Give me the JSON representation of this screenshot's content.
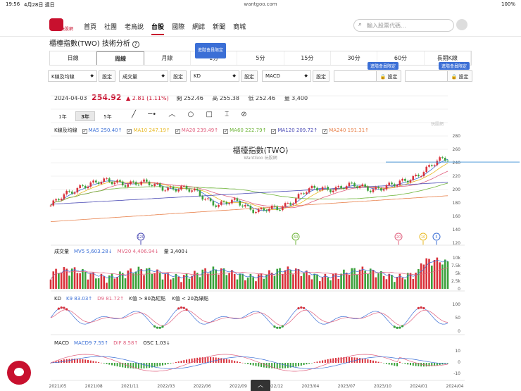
{
  "status": {
    "time": "19:56",
    "date": "4月28日 週日",
    "url": "wantgoo.com",
    "battery": "100%"
  },
  "nav": {
    "logo_text": "玩股網",
    "items": [
      "首頁",
      "社團",
      "老烏說",
      "台股",
      "國際",
      "網誌",
      "新聞",
      "商城"
    ],
    "active": "台股",
    "search_placeholder": "輸入股票代碼..."
  },
  "page": {
    "title": "櫃檯指數(TWO) 技術分析",
    "help": "?"
  },
  "tabs": [
    {
      "label": "日線"
    },
    {
      "label": "周線",
      "active": true
    },
    {
      "label": "月線"
    },
    {
      "label": "1分",
      "tag": "進階會員限定"
    },
    {
      "label": "5分"
    },
    {
      "label": "15分"
    },
    {
      "label": "30分"
    },
    {
      "label": "60分"
    },
    {
      "label": "長期K線"
    }
  ],
  "controls": [
    {
      "select": "K線及均線",
      "button": "設定"
    },
    {
      "select": "成交量",
      "button": "設定"
    },
    {
      "select": "KD",
      "button": "設定"
    },
    {
      "select": "MACD",
      "button": "設定"
    },
    {
      "select": "",
      "button": "設定",
      "locked": true,
      "tag": "進階會員限定"
    },
    {
      "select": "",
      "button": "設定",
      "locked": true,
      "tag": "進階會員限定"
    }
  ],
  "quote": {
    "date": "2024-04-03",
    "price": "254.92",
    "change": "▲ 2.81 (1.11%)",
    "open_label": "開",
    "open": "252.46",
    "high_label": "高",
    "high": "255.38",
    "low_label": "低",
    "low": "252.46",
    "vol_label": "量",
    "vol": "3,400"
  },
  "ranges": [
    "1年",
    "3年",
    "5年"
  ],
  "active_range": "3年",
  "tools": [
    "pen-icon",
    "horizontal-line-icon",
    "wave-icon",
    "circle-icon",
    "square-icon",
    "text-cursor-icon",
    "eye-off-icon"
  ],
  "kline_legend": {
    "title": "K線及均線",
    "items": [
      {
        "label": "MA5",
        "value": "250.40↑",
        "color": "#3b6fd6"
      },
      {
        "label": "MA10",
        "value": "247.19↑",
        "color": "#e8b923"
      },
      {
        "label": "MA20",
        "value": "239.49↑",
        "color": "#e0607e"
      },
      {
        "label": "MA60",
        "value": "222.79↑",
        "color": "#6fb53a"
      },
      {
        "label": "MA120",
        "value": "209.72↑",
        "color": "#4b4bb5"
      },
      {
        "label": "MA240",
        "value": "191.31↑",
        "color": "#e8804a"
      }
    ]
  },
  "chart_title": "櫃檯指數(TWO)",
  "chart_sub": "WantGoo 玩股網",
  "watermark": "玩股網",
  "price_axis": [
    "280",
    "260",
    "240",
    "220",
    "200",
    "180",
    "160",
    "140",
    "120"
  ],
  "markers": [
    {
      "label": "120",
      "color": "#4b4bb5"
    },
    {
      "label": "60",
      "color": "#6fb53a"
    },
    {
      "label": "20",
      "color": "#e0607e"
    },
    {
      "label": "10",
      "color": "#e8b923"
    },
    {
      "label": "5",
      "color": "#3b6fd6"
    }
  ],
  "volume_legend": {
    "title": "成交量",
    "items": [
      {
        "label": "MV5",
        "value": "5,603.28↓",
        "color": "#3b6fd6"
      },
      {
        "label": "MV20",
        "value": "4,406.94↓",
        "color": "#e0607e"
      },
      {
        "label": "量",
        "value": "3,400↓",
        "color": "#222"
      }
    ]
  },
  "volume_axis": [
    "10k",
    "7.5k",
    "5k",
    "2.5k",
    "0"
  ],
  "kd_legend": {
    "title": "KD",
    "items": [
      {
        "label": "K9",
        "value": "83.03↑",
        "color": "#3b6fd6"
      },
      {
        "label": "D9",
        "value": "81.72↑",
        "color": "#e0607e"
      },
      {
        "label": "K值 > 80為紅點",
        "value": "",
        "color": "#222"
      },
      {
        "label": "K值 < 20為綠點",
        "value": "",
        "color": "#222"
      }
    ]
  },
  "kd_axis": [
    "100",
    "50",
    "0"
  ],
  "macd_legend": {
    "title": "MACD",
    "items": [
      {
        "label": "MACD9",
        "value": "7.55↑",
        "color": "#3b6fd6"
      },
      {
        "label": "DIF",
        "value": "8.58↑",
        "color": "#e0607e"
      },
      {
        "label": "OSC",
        "value": "1.03↓",
        "color": "#222"
      }
    ]
  },
  "macd_axis": [
    "10",
    "0",
    "-10"
  ],
  "time_axis": [
    "2021/05",
    "2021/08",
    "2021/11",
    "2022/03",
    "2022/06",
    "2022/09",
    "2022/12",
    "2023/04",
    "2023/07",
    "2023/10",
    "2024/01",
    "2024/04"
  ],
  "up_button": "︿"
}
